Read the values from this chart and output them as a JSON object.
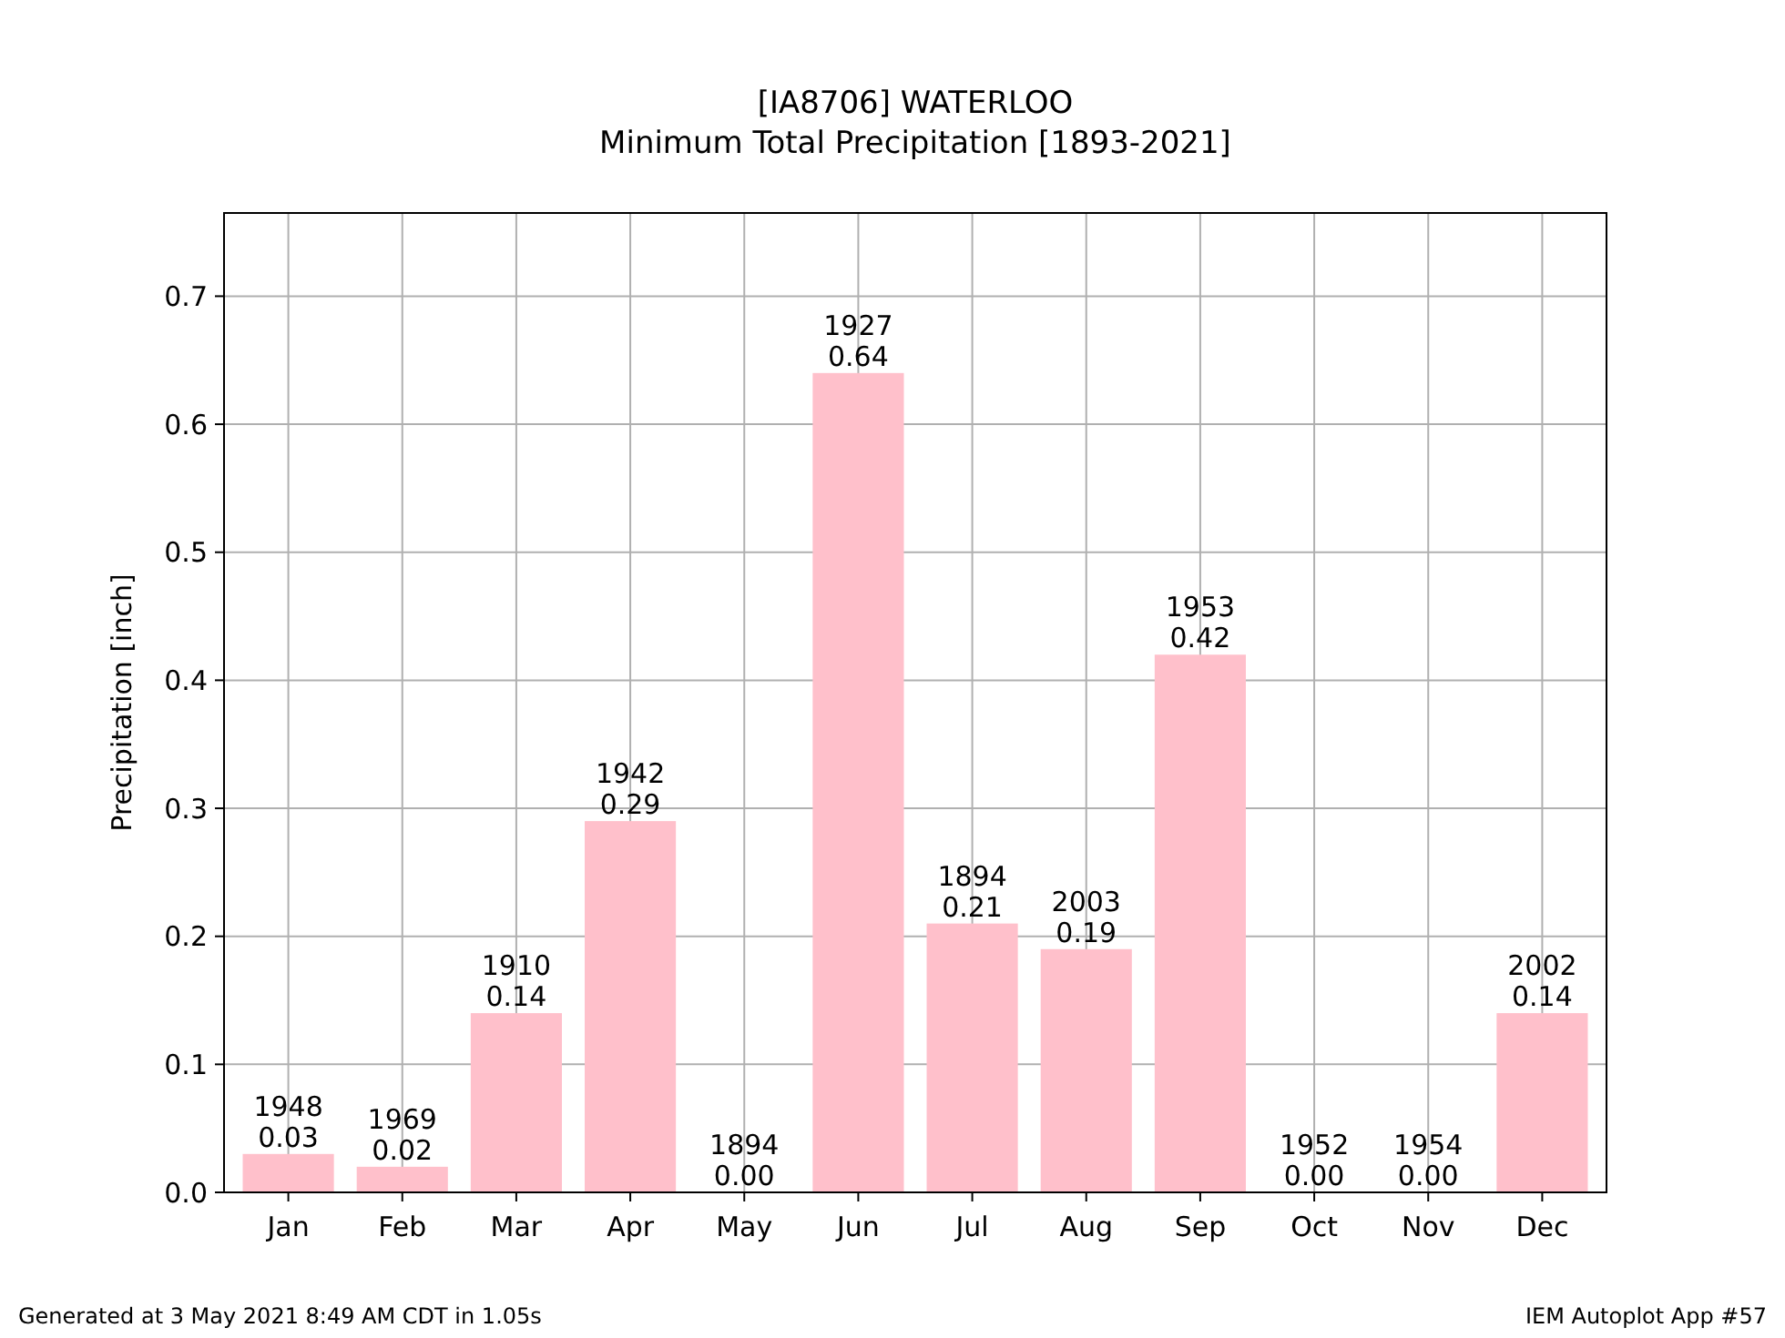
{
  "chart_data": {
    "type": "bar",
    "title": "[IA8706] WATERLOO",
    "subtitle": "Minimum Total Precipitation [1893-2021]",
    "ylabel": "Precipitation [inch]",
    "categories": [
      "Jan",
      "Feb",
      "Mar",
      "Apr",
      "May",
      "Jun",
      "Jul",
      "Aug",
      "Sep",
      "Oct",
      "Nov",
      "Dec"
    ],
    "values": [
      0.03,
      0.02,
      0.14,
      0.29,
      0.0,
      0.64,
      0.21,
      0.19,
      0.42,
      0.0,
      0.0,
      0.14
    ],
    "value_labels": [
      "1948\n0.03",
      "1969\n0.02",
      "1910\n0.14",
      "1942\n0.29",
      "1894\n0.00",
      "1927\n0.64",
      "1894\n0.21",
      "2003\n0.19",
      "1953\n0.42",
      "1952\n0.00",
      "1954\n0.00",
      "2002\n0.14"
    ],
    "color": "#ffc0cb",
    "ylim": [
      0,
      0.765
    ],
    "yticks": [
      {
        "value": 0,
        "label": "0.0"
      },
      0.1,
      0.2,
      0.3,
      0.4,
      0.5,
      0.6,
      0.7
    ],
    "grid": true,
    "annotations": [
      "Generated at 3 May 2021 8:49 AM CDT in 1.05s",
      "IEM Autoplot App #57"
    ]
  }
}
